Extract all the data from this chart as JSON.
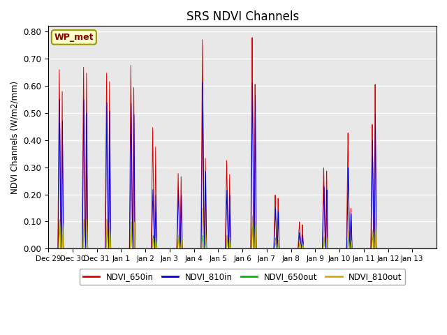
{
  "title": "SRS NDVI Channels",
  "ylabel": "NDVI Channels (W/m2/mm)",
  "xlabel": "",
  "annotation": "WP_met",
  "ylim": [
    0.0,
    0.82
  ],
  "yticks": [
    0.0,
    0.1,
    0.2,
    0.3,
    0.4,
    0.5,
    0.6,
    0.7,
    0.8
  ],
  "xtick_labels": [
    "Dec 29",
    "Dec 30",
    "Dec 31",
    "Jan 1",
    "Jan 2",
    "Jan 3",
    "Jan 4",
    "Jan 5",
    "Jan 6",
    "Jan 7",
    "Jan 8",
    "Jan 9",
    "Jan 10",
    "Jan 11",
    "Jan 12",
    "Jan 13"
  ],
  "series_colors": {
    "NDVI_650in": "#dd0000",
    "NDVI_810in": "#0000dd",
    "NDVI_650out": "#00bb00",
    "NDVI_810out": "#ddaa00"
  },
  "background_color": "#e8e8e8",
  "grid_color": "#ffffff",
  "title_fontsize": 12,
  "annotation_bg": "#ffffcc",
  "annotation_border": "#999900",
  "figsize": [
    6.4,
    4.8
  ],
  "dpi": 100,
  "spike_groups": [
    {
      "day": 0.45,
      "red": 0.66,
      "blue": 0.55,
      "green": 0.1,
      "orange": 0.11,
      "red2": 0.58,
      "blue2": 0.47,
      "green2": 0.09,
      "orange2": 0.1
    },
    {
      "day": 1.45,
      "red": 0.67,
      "blue": 0.55,
      "green": 0.1,
      "orange": 0.11,
      "red2": 0.65,
      "blue2": 0.5,
      "green2": 0.09,
      "orange2": 0.11
    },
    {
      "day": 2.4,
      "red": 0.65,
      "blue": 0.54,
      "green": 0.08,
      "orange": 0.11,
      "red2": 0.62,
      "blue2": 0.51,
      "green2": 0.07,
      "orange2": 0.1
    },
    {
      "day": 3.4,
      "red": 0.68,
      "blue": 0.54,
      "green": 0.1,
      "orange": 0.1,
      "red2": 0.6,
      "blue2": 0.5,
      "green2": 0.09,
      "orange2": 0.1
    },
    {
      "day": 4.3,
      "red": 0.45,
      "blue": 0.22,
      "green": 0.05,
      "orange": 0.04,
      "red2": 0.38,
      "blue2": 0.2,
      "green2": 0.04,
      "orange2": 0.04
    },
    {
      "day": 5.35,
      "red": 0.28,
      "blue": 0.22,
      "green": 0.05,
      "orange": 0.05,
      "red2": 0.27,
      "blue2": 0.2,
      "green2": 0.04,
      "orange2": 0.04
    },
    {
      "day": 6.35,
      "red": 0.78,
      "blue": 0.62,
      "green": 0.05,
      "orange": 0.15,
      "red2": 0.34,
      "blue2": 0.29,
      "green2": 0.04,
      "orange2": 0.06
    },
    {
      "day": 7.35,
      "red": 0.33,
      "blue": 0.22,
      "green": 0.04,
      "orange": 0.05,
      "red2": 0.28,
      "blue2": 0.2,
      "green2": 0.04,
      "orange2": 0.04
    },
    {
      "day": 8.4,
      "red": 0.79,
      "blue": 0.62,
      "green": 0.1,
      "orange": 0.12,
      "red2": 0.62,
      "blue2": 0.58,
      "green2": 0.09,
      "orange2": 0.1
    },
    {
      "day": 9.35,
      "red": 0.2,
      "blue": 0.15,
      "green": 0.04,
      "orange": 0.03,
      "red2": 0.19,
      "blue2": 0.14,
      "green2": 0.03,
      "orange2": 0.03
    },
    {
      "day": 10.35,
      "red": 0.1,
      "blue": 0.06,
      "green": 0.02,
      "orange": 0.03,
      "red2": 0.09,
      "blue2": 0.05,
      "green2": 0.02,
      "orange2": 0.02
    },
    {
      "day": 11.35,
      "red": 0.3,
      "blue": 0.23,
      "green": 0.04,
      "orange": 0.05,
      "red2": 0.29,
      "blue2": 0.22,
      "green2": 0.03,
      "orange2": 0.04
    },
    {
      "day": 12.35,
      "red": 0.43,
      "blue": 0.3,
      "green": 0.05,
      "orange": 0.07,
      "red2": 0.15,
      "blue2": 0.13,
      "green2": 0.03,
      "orange2": 0.03
    },
    {
      "day": 13.35,
      "red": 0.46,
      "blue": 0.4,
      "green": 0.06,
      "orange": 0.07,
      "red2": 0.61,
      "blue2": 0.5,
      "green2": 0.07,
      "orange2": 0.1
    }
  ]
}
